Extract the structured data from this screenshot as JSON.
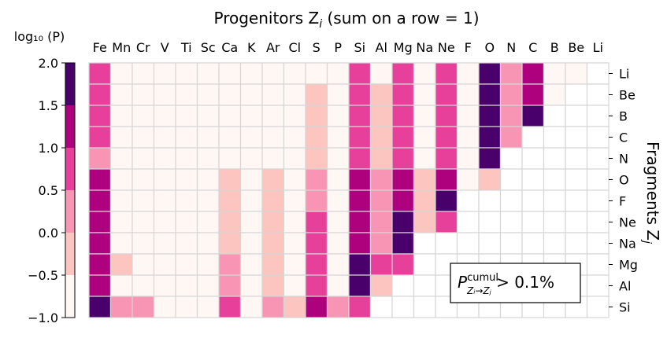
{
  "chart_data": {
    "type": "heatmap",
    "title": "Progenitors Z",
    "title_sub": "i",
    "title_rest": " (sum on a row = 1)",
    "ylabel": "Fragments Z",
    "ylabel_sub": "j",
    "colorbar_label": "log₁₀ (P)",
    "colorbar_ticks": [
      "2.0",
      "1.5",
      "1.0",
      "0.5",
      "0.0",
      "−0.5",
      "−1.0"
    ],
    "colorbar_range": [
      -1.0,
      2.0
    ],
    "colors": [
      "#fff7f3",
      "#fcc5c0",
      "#f995b4",
      "#e7409a",
      "#ad017e",
      "#49006a"
    ],
    "grid": true,
    "annotation": {
      "main": "P",
      "sup": "cumul",
      "sub": "Zᵢ→Zⱼ",
      "rest": " > 0.1%",
      "position": "bottom-right"
    },
    "columns": [
      "Fe",
      "Mn",
      "Cr",
      "V",
      "Ti",
      "Sc",
      "Ca",
      "K",
      "Ar",
      "Cl",
      "S",
      "P",
      "Si",
      "Al",
      "Mg",
      "Na",
      "Ne",
      "F",
      "O",
      "N",
      "C",
      "B",
      "Be",
      "Li"
    ],
    "rows": [
      "Li",
      "Be",
      "B",
      "C",
      "N",
      "O",
      "F",
      "Ne",
      "Na",
      "Mg",
      "Al",
      "Si"
    ],
    "levels": [
      [
        3,
        0,
        0,
        0,
        0,
        0,
        0,
        0,
        0,
        0,
        0,
        0,
        3,
        0,
        3,
        0,
        3,
        0,
        5,
        2,
        4,
        0,
        0,
        0
      ],
      [
        3,
        0,
        0,
        0,
        0,
        0,
        0,
        0,
        0,
        0,
        1,
        0,
        3,
        1,
        3,
        0,
        3,
        0,
        5,
        2,
        4,
        0,
        0,
        0
      ],
      [
        3,
        0,
        0,
        0,
        0,
        0,
        0,
        0,
        0,
        0,
        1,
        0,
        3,
        1,
        3,
        0,
        3,
        0,
        5,
        2,
        5,
        0,
        0,
        0
      ],
      [
        3,
        0,
        0,
        0,
        0,
        0,
        0,
        0,
        0,
        0,
        1,
        0,
        3,
        1,
        3,
        0,
        3,
        0,
        5,
        2,
        0,
        0,
        0,
        0
      ],
      [
        2,
        0,
        0,
        0,
        0,
        0,
        0,
        0,
        0,
        0,
        1,
        0,
        3,
        1,
        3,
        0,
        3,
        0,
        5,
        0,
        0,
        0,
        0,
        0
      ],
      [
        4,
        0,
        0,
        0,
        0,
        0,
        1,
        0,
        1,
        0,
        2,
        0,
        4,
        2,
        4,
        1,
        4,
        0,
        1,
        0,
        0,
        0,
        0,
        0
      ],
      [
        4,
        0,
        0,
        0,
        0,
        0,
        1,
        0,
        1,
        0,
        2,
        0,
        4,
        2,
        4,
        1,
        5,
        0,
        0,
        0,
        0,
        0,
        0,
        0
      ],
      [
        4,
        0,
        0,
        0,
        0,
        0,
        1,
        0,
        1,
        0,
        3,
        0,
        4,
        2,
        5,
        1,
        3,
        0,
        0,
        0,
        0,
        0,
        0,
        0
      ],
      [
        4,
        0,
        0,
        0,
        0,
        0,
        1,
        0,
        1,
        0,
        3,
        0,
        4,
        2,
        5,
        0,
        0,
        0,
        0,
        0,
        0,
        0,
        0,
        0
      ],
      [
        4,
        1,
        0,
        0,
        0,
        0,
        2,
        0,
        1,
        0,
        3,
        0,
        5,
        3,
        3,
        0,
        0,
        0,
        0,
        0,
        0,
        0,
        0,
        0
      ],
      [
        4,
        0,
        0,
        0,
        0,
        0,
        2,
        0,
        1,
        0,
        3,
        0,
        5,
        1,
        0,
        0,
        0,
        0,
        0,
        0,
        0,
        0,
        0,
        0
      ],
      [
        5,
        2,
        2,
        0,
        0,
        0,
        3,
        0,
        2,
        1,
        4,
        2,
        3,
        0,
        0,
        0,
        0,
        0,
        0,
        0,
        0,
        0,
        0,
        0
      ]
    ],
    "mask": [
      [
        1,
        1,
        1,
        1,
        1,
        1,
        1,
        1,
        1,
        1,
        1,
        1,
        1,
        1,
        1,
        1,
        1,
        1,
        1,
        1,
        1,
        1,
        1,
        0
      ],
      [
        1,
        1,
        1,
        1,
        1,
        1,
        1,
        1,
        1,
        1,
        1,
        1,
        1,
        1,
        1,
        1,
        1,
        1,
        1,
        1,
        1,
        1,
        0,
        0
      ],
      [
        1,
        1,
        1,
        1,
        1,
        1,
        1,
        1,
        1,
        1,
        1,
        1,
        1,
        1,
        1,
        1,
        1,
        1,
        1,
        1,
        1,
        0,
        0,
        0
      ],
      [
        1,
        1,
        1,
        1,
        1,
        1,
        1,
        1,
        1,
        1,
        1,
        1,
        1,
        1,
        1,
        1,
        1,
        1,
        1,
        1,
        0,
        0,
        0,
        0
      ],
      [
        1,
        1,
        1,
        1,
        1,
        1,
        1,
        1,
        1,
        1,
        1,
        1,
        1,
        1,
        1,
        1,
        1,
        1,
        1,
        0,
        0,
        0,
        0,
        0
      ],
      [
        1,
        1,
        1,
        1,
        1,
        1,
        1,
        1,
        1,
        1,
        1,
        1,
        1,
        1,
        1,
        1,
        1,
        1,
        1,
        0,
        0,
        0,
        0,
        0
      ],
      [
        1,
        1,
        1,
        1,
        1,
        1,
        1,
        1,
        1,
        1,
        1,
        1,
        1,
        1,
        1,
        1,
        1,
        0,
        0,
        0,
        0,
        0,
        0,
        0
      ],
      [
        1,
        1,
        1,
        1,
        1,
        1,
        1,
        1,
        1,
        1,
        1,
        1,
        1,
        1,
        1,
        1,
        1,
        0,
        0,
        0,
        0,
        0,
        0,
        0
      ],
      [
        1,
        1,
        1,
        1,
        1,
        1,
        1,
        1,
        1,
        1,
        1,
        1,
        1,
        1,
        1,
        0,
        0,
        0,
        0,
        0,
        0,
        0,
        0,
        0
      ],
      [
        1,
        1,
        1,
        1,
        1,
        1,
        1,
        1,
        1,
        1,
        1,
        1,
        1,
        1,
        1,
        0,
        0,
        0,
        0,
        0,
        0,
        0,
        0,
        0
      ],
      [
        1,
        1,
        1,
        1,
        1,
        1,
        1,
        1,
        1,
        1,
        1,
        1,
        1,
        1,
        0,
        0,
        0,
        0,
        0,
        0,
        0,
        0,
        0,
        0
      ],
      [
        1,
        1,
        1,
        1,
        1,
        1,
        1,
        1,
        1,
        1,
        1,
        1,
        1,
        0,
        0,
        0,
        0,
        0,
        0,
        0,
        0,
        0,
        0,
        0
      ]
    ]
  }
}
